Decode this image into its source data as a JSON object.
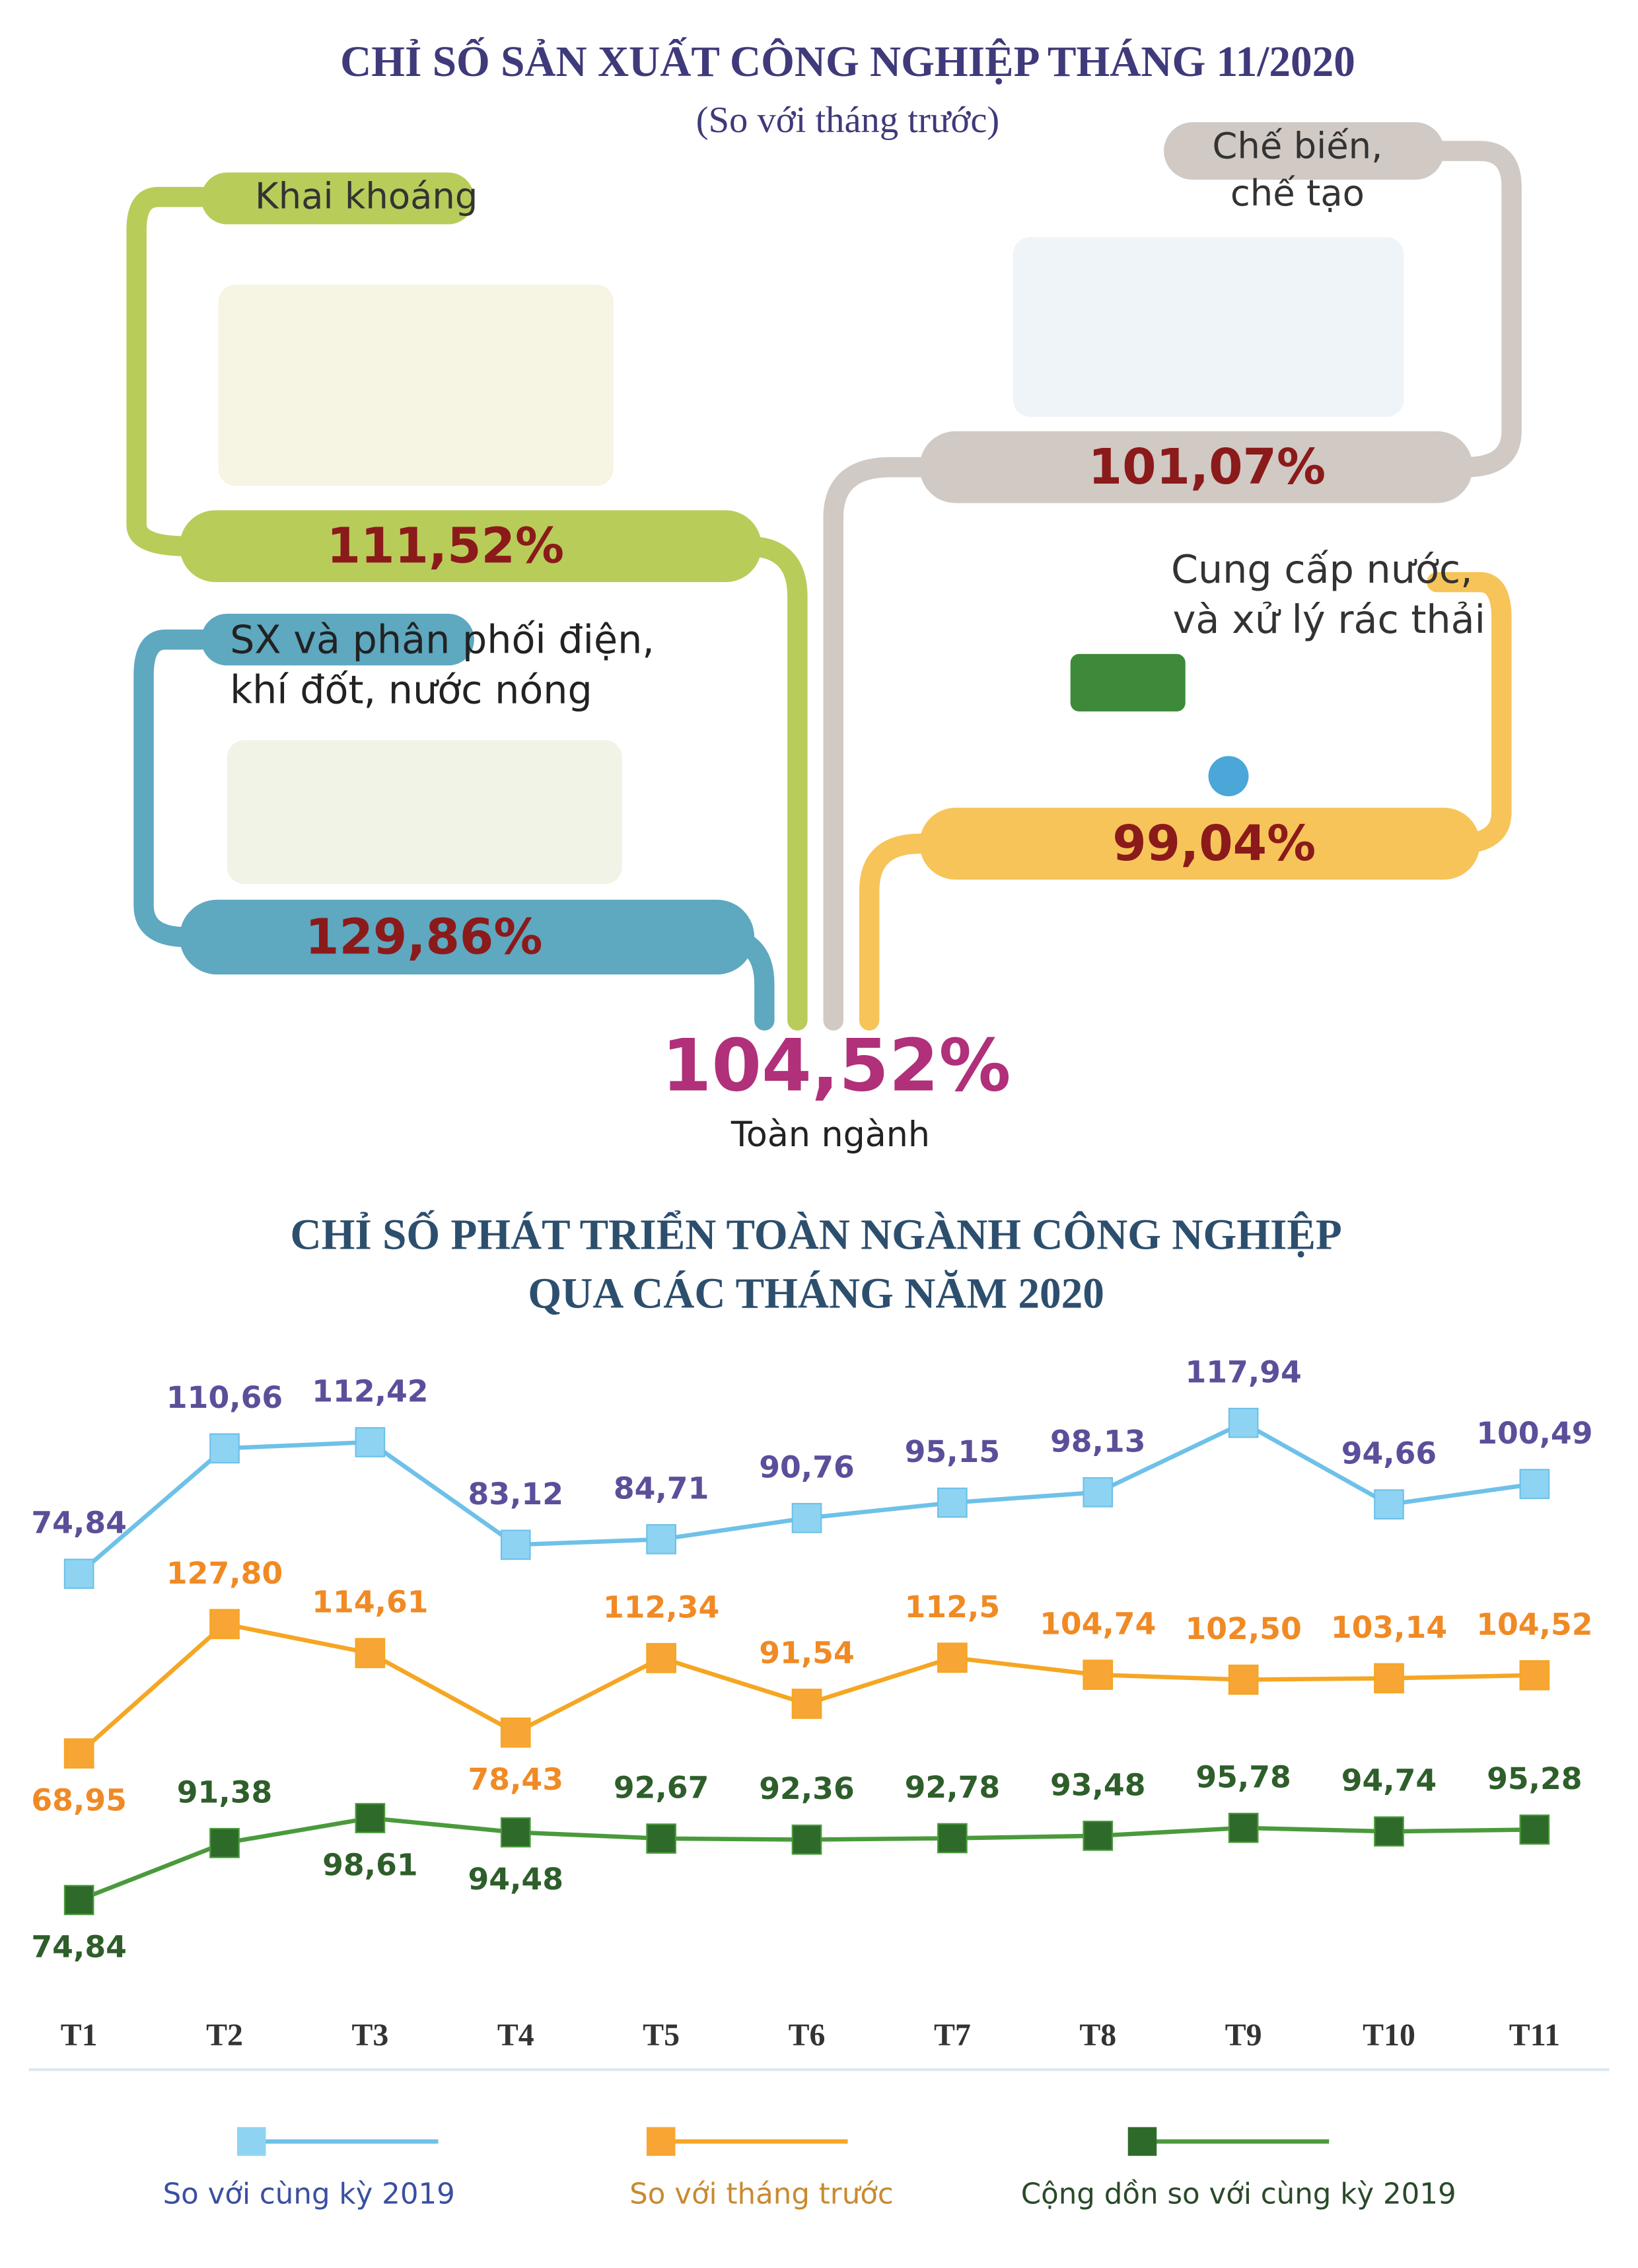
{
  "header": {
    "title": "CHỈ SỐ SẢN XUẤT CÔNG NGHIỆP THÁNG 11/2020",
    "subtitle": "(So với tháng trước)"
  },
  "sectors": [
    {
      "label": [
        "Khai khoáng"
      ],
      "value": "111,52%"
    },
    {
      "label": [
        "Chế biến,",
        "chế tạo"
      ],
      "value": "101,07%"
    },
    {
      "label": [
        "SX và phân phối điện,",
        "khí đốt, nước nóng"
      ],
      "value": "129,86%"
    },
    {
      "label": [
        "Cung cấp nước,",
        "và xử lý rác thải"
      ],
      "value": "99,04%"
    }
  ],
  "total": {
    "value": "104,52%",
    "label": "Toàn ngành"
  },
  "chart_data": {
    "type": "line",
    "title": [
      "CHỈ SỐ PHÁT TRIỂN TOÀN NGÀNH CÔNG NGHIỆP",
      "QUA CÁC THÁNG NĂM 2020"
    ],
    "categories": [
      "T1",
      "T2",
      "T3",
      "T4",
      "T5",
      "T6",
      "T7",
      "T8",
      "T9",
      "T10",
      "T11"
    ],
    "series": [
      {
        "name": "So với cùng kỳ 2019",
        "color": "#6ec1e8",
        "values": [
          74.84,
          110.66,
          112.42,
          83.12,
          84.71,
          90.76,
          95.15,
          98.13,
          117.94,
          94.66,
          100.49
        ],
        "value_labels": [
          "74,84",
          "110,66",
          "112,42",
          "83,12",
          "84,71",
          "90,76",
          "95,15",
          "98,13",
          "117,94",
          "94,66",
          "100,49"
        ]
      },
      {
        "name": "So với tháng trước",
        "color": "#f5a623",
        "values": [
          68.95,
          127.8,
          114.61,
          78.43,
          112.34,
          91.54,
          112.5,
          104.74,
          102.5,
          103.14,
          104.52
        ],
        "value_labels": [
          "68,95",
          "127,80",
          "114,61",
          "78,43",
          "112,34",
          "91,54",
          "112,5",
          "104,74",
          "102,50",
          "103,14",
          "104,52"
        ]
      },
      {
        "name": "Cộng dồn so với cùng kỳ 2019",
        "color": "#4a9a3c",
        "values": [
          74.84,
          91.38,
          98.61,
          94.48,
          92.67,
          92.36,
          92.78,
          93.48,
          95.78,
          94.74,
          95.28
        ],
        "value_labels": [
          "74,84",
          "91,38",
          "98,61",
          "94,48",
          "92,67",
          "92,36",
          "92,78",
          "93,48",
          "95,78",
          "94,74",
          "95,28"
        ]
      }
    ]
  }
}
